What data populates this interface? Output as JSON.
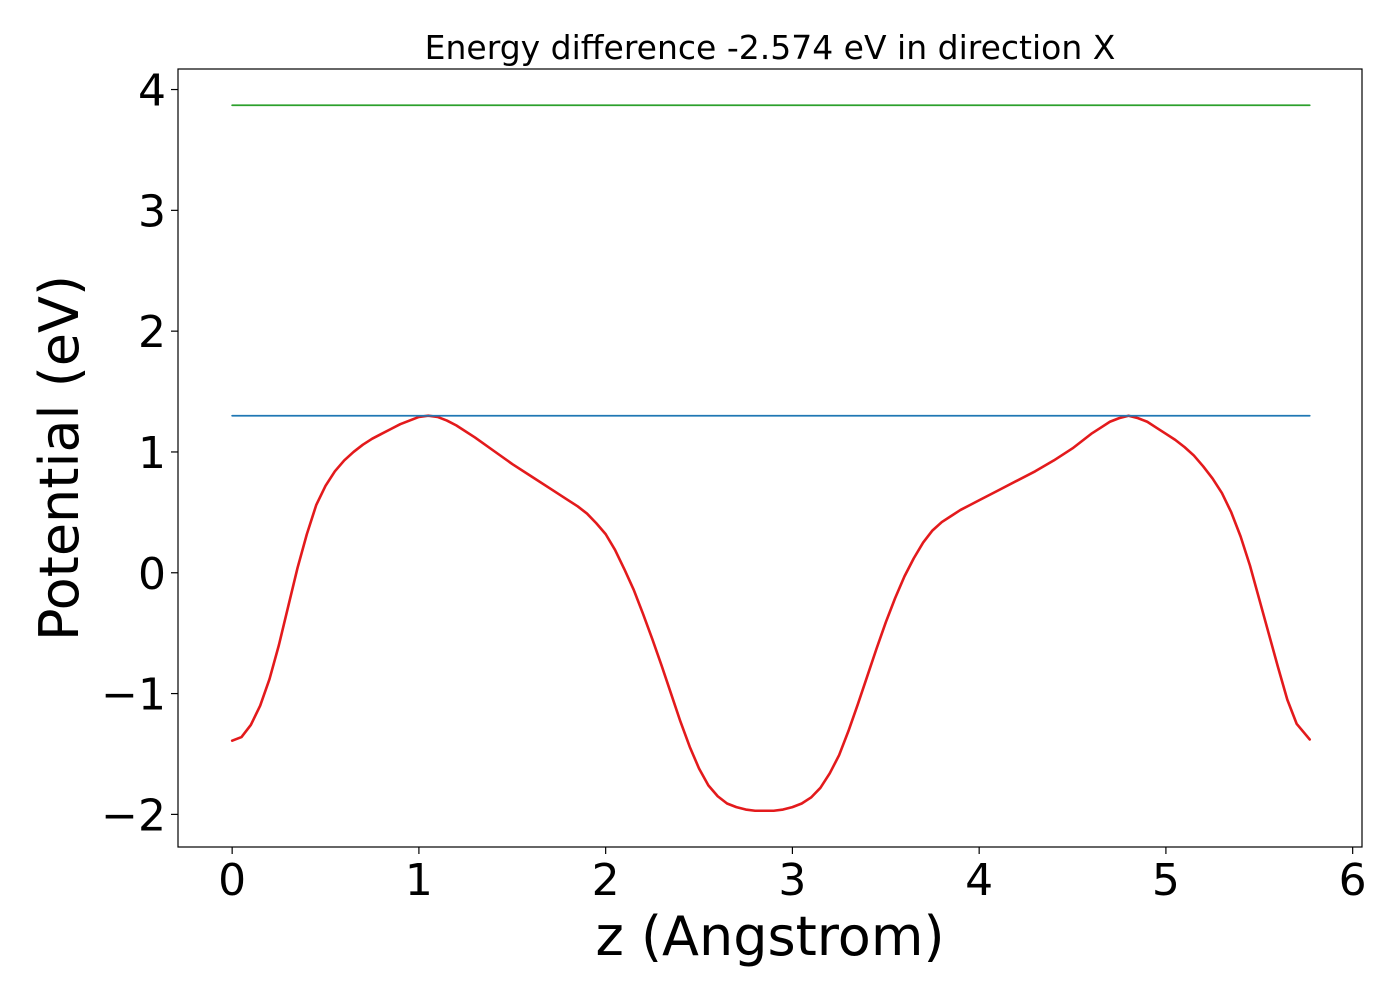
{
  "chart_data": {
    "type": "line",
    "title": "Energy difference -2.574 eV in direction X",
    "xlabel": "z (Angstrom)",
    "ylabel": "Potential (eV)",
    "xlim": [
      -0.29,
      6.05
    ],
    "ylim": [
      -2.27,
      4.17
    ],
    "xticks": [
      0,
      1,
      2,
      3,
      4,
      5,
      6
    ],
    "xtick_labels": [
      "0",
      "1",
      "2",
      "3",
      "4",
      "5",
      "6"
    ],
    "yticks": [
      -2,
      -1,
      0,
      1,
      2,
      3,
      4
    ],
    "ytick_labels": [
      "−2",
      "−1",
      "0",
      "1",
      "2",
      "3",
      "4"
    ],
    "grid": false,
    "series": [
      {
        "color": "#e31a1c",
        "x": [
          0,
          0.05,
          0.1,
          0.15,
          0.2,
          0.25,
          0.3,
          0.35,
          0.4,
          0.45,
          0.5,
          0.55,
          0.6,
          0.65,
          0.7,
          0.75,
          0.8,
          0.85,
          0.9,
          0.95,
          1.0,
          1.05,
          1.1,
          1.15,
          1.2,
          1.3,
          1.4,
          1.5,
          1.6,
          1.7,
          1.8,
          1.85,
          1.9,
          1.95,
          2.0,
          2.05,
          2.1,
          2.15,
          2.2,
          2.25,
          2.3,
          2.35,
          2.4,
          2.45,
          2.5,
          2.55,
          2.6,
          2.65,
          2.7,
          2.75,
          2.8,
          2.85,
          2.9,
          2.95,
          3.0,
          3.05,
          3.1,
          3.15,
          3.2,
          3.25,
          3.3,
          3.35,
          3.4,
          3.45,
          3.5,
          3.55,
          3.6,
          3.65,
          3.7,
          3.75,
          3.8,
          3.85,
          3.9,
          3.95,
          4.0,
          4.1,
          4.2,
          4.3,
          4.4,
          4.5,
          4.55,
          4.6,
          4.65,
          4.7,
          4.75,
          4.8,
          4.85,
          4.9,
          4.95,
          5.0,
          5.05,
          5.1,
          5.15,
          5.2,
          5.25,
          5.3,
          5.35,
          5.4,
          5.45,
          5.5,
          5.55,
          5.6,
          5.65,
          5.7,
          5.77
        ],
        "y": [
          -1.39,
          -1.36,
          -1.26,
          -1.1,
          -0.88,
          -0.6,
          -0.28,
          0.04,
          0.32,
          0.56,
          0.72,
          0.84,
          0.93,
          1.0,
          1.06,
          1.11,
          1.15,
          1.19,
          1.23,
          1.26,
          1.29,
          1.3,
          1.29,
          1.26,
          1.22,
          1.12,
          1.01,
          0.9,
          0.8,
          0.7,
          0.6,
          0.55,
          0.49,
          0.41,
          0.32,
          0.19,
          0.03,
          -0.14,
          -0.34,
          -0.55,
          -0.77,
          -1.0,
          -1.23,
          -1.44,
          -1.62,
          -1.76,
          -1.85,
          -1.91,
          -1.94,
          -1.96,
          -1.97,
          -1.97,
          -1.97,
          -1.96,
          -1.94,
          -1.91,
          -1.86,
          -1.78,
          -1.66,
          -1.51,
          -1.31,
          -1.09,
          -0.86,
          -0.63,
          -0.41,
          -0.21,
          -0.03,
          0.12,
          0.25,
          0.35,
          0.42,
          0.47,
          0.52,
          0.56,
          0.6,
          0.68,
          0.76,
          0.84,
          0.93,
          1.03,
          1.09,
          1.15,
          1.2,
          1.25,
          1.28,
          1.3,
          1.28,
          1.25,
          1.2,
          1.15,
          1.1,
          1.04,
          0.97,
          0.88,
          0.78,
          0.66,
          0.5,
          0.3,
          0.06,
          -0.22,
          -0.5,
          -0.78,
          -1.05,
          -1.25,
          -1.38
        ]
      },
      {
        "color": "#1f77b4",
        "x": [
          0,
          5.77
        ],
        "y": [
          1.3,
          1.3
        ]
      },
      {
        "color": "#2ca02c",
        "x": [
          0,
          5.77
        ],
        "y": [
          3.87,
          3.87
        ]
      }
    ]
  }
}
